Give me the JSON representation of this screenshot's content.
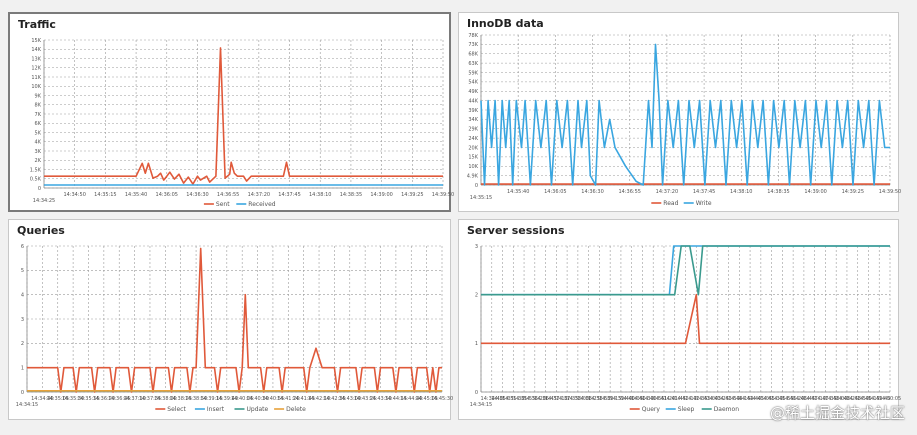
{
  "watermark": "@稀土掘金技术社区",
  "colors": {
    "red": "#e0593a",
    "blue": "#3aa6e0",
    "grid": "#9a9a9a"
  },
  "chart_data": [
    {
      "type": "line",
      "title": "Traffic",
      "y_ticks": [
        "0",
        "0.5K",
        "1.5K",
        "2K",
        "3K",
        "4K",
        "5K",
        "6K",
        "7K",
        "8K",
        "9K",
        "10K",
        "11K",
        "12K",
        "13K",
        "14K",
        "15K"
      ],
      "ylim": [
        0,
        15
      ],
      "x_ticks": [
        "14:34:25",
        "14:34:50",
        "14:35:15",
        "14:35:40",
        "14:36:05",
        "14:36:30",
        "14:36:55",
        "14:37:20",
        "14:37:45",
        "14:38:10",
        "14:38:35",
        "14:39:00",
        "14:39:25",
        "14:39:50"
      ],
      "xlim": [
        0,
        13
      ],
      "series": [
        {
          "name": "Sent",
          "color": "#e0593a",
          "points": [
            [
              0,
              1.2
            ],
            [
              3,
              1.2
            ],
            [
              3.2,
              2.5
            ],
            [
              3.3,
              1.5
            ],
            [
              3.4,
              2.5
            ],
            [
              3.55,
              1
            ],
            [
              3.7,
              1.2
            ],
            [
              3.8,
              1.5
            ],
            [
              3.9,
              0.8
            ],
            [
              4.0,
              1.2
            ],
            [
              4.1,
              1.6
            ],
            [
              4.25,
              0.9
            ],
            [
              4.4,
              1.4
            ],
            [
              4.55,
              0.5
            ],
            [
              4.7,
              1.1
            ],
            [
              4.85,
              0.4
            ],
            [
              5.0,
              1.2
            ],
            [
              5.1,
              0.8
            ],
            [
              5.3,
              1.2
            ],
            [
              5.4,
              0.6
            ],
            [
              5.6,
              1.2
            ],
            [
              5.75,
              14.2
            ],
            [
              5.9,
              1.0
            ],
            [
              6.05,
              1.4
            ],
            [
              6.1,
              2.6
            ],
            [
              6.2,
              1.5
            ],
            [
              6.3,
              1.2
            ],
            [
              6.5,
              1.2
            ],
            [
              6.6,
              0.7
            ],
            [
              6.75,
              1.2
            ],
            [
              7.8,
              1.2
            ],
            [
              7.9,
              2.6
            ],
            [
              8.0,
              1.2
            ],
            [
              13,
              1.2
            ]
          ]
        },
        {
          "name": "Received",
          "color": "#3aa6e0",
          "points": [
            [
              0,
              0.3
            ],
            [
              13,
              0.3
            ]
          ]
        }
      ]
    },
    {
      "type": "line",
      "title": "InnoDB data",
      "y_ticks": [
        "0",
        "4.9K",
        "10K",
        "15K",
        "20K",
        "24K",
        "29K",
        "34K",
        "39K",
        "44K",
        "49K",
        "54K",
        "59K",
        "63K",
        "68K",
        "73K",
        "78K"
      ],
      "ylim": [
        0,
        16
      ],
      "x_ticks": [
        "14:35:15",
        "14:35:40",
        "14:36:05",
        "14:36:30",
        "14:36:55",
        "14:37:20",
        "14:37:45",
        "14:38:10",
        "14:38:35",
        "14:39:00",
        "14:39:25",
        "14:39:50"
      ],
      "xlim": [
        0,
        11.6
      ],
      "series": [
        {
          "name": "Read",
          "color": "#e0593a",
          "points": [
            [
              0,
              0.1
            ],
            [
              11.6,
              0.1
            ]
          ]
        },
        {
          "name": "Write",
          "color": "#3aa6e0",
          "points": [
            [
              0,
              9
            ],
            [
              0.1,
              0
            ],
            [
              0.2,
              9
            ],
            [
              0.3,
              4
            ],
            [
              0.4,
              9
            ],
            [
              0.5,
              0
            ],
            [
              0.6,
              9
            ],
            [
              0.7,
              4
            ],
            [
              0.8,
              9
            ],
            [
              0.9,
              0
            ],
            [
              1.0,
              9
            ],
            [
              1.15,
              4
            ],
            [
              1.25,
              9
            ],
            [
              1.4,
              0
            ],
            [
              1.55,
              9
            ],
            [
              1.7,
              4
            ],
            [
              1.85,
              9
            ],
            [
              2.0,
              0
            ],
            [
              2.15,
              9
            ],
            [
              2.3,
              4
            ],
            [
              2.45,
              9
            ],
            [
              2.6,
              0
            ],
            [
              2.75,
              9
            ],
            [
              2.85,
              4
            ],
            [
              3.0,
              9
            ],
            [
              3.1,
              1
            ],
            [
              3.25,
              0
            ],
            [
              3.35,
              9
            ],
            [
              3.5,
              4
            ],
            [
              3.65,
              7
            ],
            [
              3.8,
              4
            ],
            [
              4.1,
              2
            ],
            [
              4.4,
              0.4
            ],
            [
              4.6,
              0
            ],
            [
              4.75,
              9
            ],
            [
              4.85,
              4
            ],
            [
              4.95,
              15
            ],
            [
              5.05,
              9
            ],
            [
              5.15,
              0
            ],
            [
              5.3,
              9
            ],
            [
              5.45,
              4
            ],
            [
              5.6,
              9
            ],
            [
              5.75,
              0
            ],
            [
              5.9,
              9
            ],
            [
              6.05,
              4
            ],
            [
              6.2,
              9
            ],
            [
              6.35,
              0
            ],
            [
              6.5,
              9
            ],
            [
              6.65,
              4
            ],
            [
              6.8,
              9
            ],
            [
              6.95,
              0
            ],
            [
              7.1,
              9
            ],
            [
              7.25,
              4
            ],
            [
              7.4,
              9
            ],
            [
              7.55,
              0
            ],
            [
              7.7,
              9
            ],
            [
              7.85,
              4
            ],
            [
              8.0,
              9
            ],
            [
              8.15,
              0
            ],
            [
              8.3,
              9
            ],
            [
              8.45,
              4
            ],
            [
              8.6,
              9
            ],
            [
              8.75,
              0
            ],
            [
              8.9,
              9
            ],
            [
              9.05,
              4
            ],
            [
              9.2,
              9
            ],
            [
              9.35,
              0
            ],
            [
              9.5,
              9
            ],
            [
              9.65,
              4
            ],
            [
              9.8,
              9
            ],
            [
              9.95,
              0
            ],
            [
              10.1,
              9
            ],
            [
              10.25,
              4
            ],
            [
              10.4,
              9
            ],
            [
              10.55,
              0
            ],
            [
              10.7,
              9
            ],
            [
              10.85,
              4
            ],
            [
              11.0,
              9
            ],
            [
              11.15,
              0
            ],
            [
              11.3,
              9
            ],
            [
              11.45,
              4
            ],
            [
              11.6,
              4
            ]
          ]
        }
      ]
    },
    {
      "type": "line",
      "title": "Queries",
      "y_ticks": [
        "0",
        "1",
        "2",
        "3",
        "4",
        "5",
        "6"
      ],
      "ylim": [
        0,
        6
      ],
      "x_ticks": [
        "14:34:15",
        "14:34:40",
        "14:35:05",
        "14:35:30",
        "14:35:55",
        "14:36:20",
        "14:36:45",
        "14:37:10",
        "14:37:35",
        "14:38:00",
        "14:38:25",
        "14:38:50",
        "14:39:15",
        "14:39:40",
        "14:40:05",
        "14:40:30",
        "14:40:55",
        "14:41:20",
        "14:41:45",
        "14:42:10",
        "14:42:35",
        "14:43:00",
        "14:43:25",
        "14:43:50",
        "14:44:15",
        "14:44:40",
        "14:45:05",
        "14:45:30"
      ],
      "xlim": [
        0,
        27
      ],
      "series": [
        {
          "name": "Select",
          "color": "#e0593a",
          "points": [
            [
              0,
              1
            ],
            [
              2,
              1
            ],
            [
              2.2,
              0
            ],
            [
              2.4,
              1
            ],
            [
              3,
              1
            ],
            [
              3.2,
              0
            ],
            [
              3.4,
              1
            ],
            [
              4.2,
              1
            ],
            [
              4.4,
              0
            ],
            [
              4.6,
              1
            ],
            [
              5.4,
              1
            ],
            [
              5.6,
              0
            ],
            [
              5.8,
              1
            ],
            [
              6.6,
              1
            ],
            [
              6.8,
              0
            ],
            [
              7,
              1
            ],
            [
              8,
              1
            ],
            [
              8.2,
              0
            ],
            [
              8.4,
              1
            ],
            [
              9.2,
              1
            ],
            [
              9.4,
              0
            ],
            [
              9.6,
              1
            ],
            [
              10.4,
              1
            ],
            [
              10.6,
              0
            ],
            [
              10.8,
              1
            ],
            [
              11,
              1
            ],
            [
              11.3,
              5.9
            ],
            [
              11.6,
              1
            ],
            [
              12.2,
              1
            ],
            [
              12.4,
              0
            ],
            [
              12.6,
              1
            ],
            [
              13.6,
              1
            ],
            [
              13.8,
              0
            ],
            [
              14.0,
              1
            ],
            [
              14.2,
              4
            ],
            [
              14.4,
              1
            ],
            [
              15.2,
              1
            ],
            [
              15.4,
              0
            ],
            [
              15.6,
              1
            ],
            [
              16.4,
              1
            ],
            [
              16.6,
              0
            ],
            [
              16.8,
              1
            ],
            [
              18,
              1
            ],
            [
              18.2,
              0
            ],
            [
              18.4,
              1
            ],
            [
              18.8,
              1.8
            ],
            [
              19.2,
              1
            ],
            [
              20,
              1
            ],
            [
              20.2,
              0
            ],
            [
              20.4,
              1
            ],
            [
              21.4,
              1
            ],
            [
              21.6,
              0
            ],
            [
              21.8,
              1
            ],
            [
              22.6,
              1
            ],
            [
              22.8,
              0
            ],
            [
              23,
              1
            ],
            [
              23.8,
              1
            ],
            [
              24,
              0
            ],
            [
              24.2,
              1
            ],
            [
              25,
              1
            ],
            [
              25.2,
              0
            ],
            [
              25.4,
              1
            ],
            [
              26,
              1
            ],
            [
              26.2,
              0
            ],
            [
              26.4,
              1
            ],
            [
              26.6,
              0
            ],
            [
              26.8,
              1
            ],
            [
              27,
              1
            ]
          ]
        },
        {
          "name": "Insert",
          "color": "#3aa6e0",
          "points": [
            [
              0,
              0.05
            ],
            [
              27,
              0.05
            ]
          ]
        },
        {
          "name": "Update",
          "color": "#3a9a8e",
          "points": [
            [
              0,
              0.05
            ],
            [
              27,
              0.05
            ]
          ]
        },
        {
          "name": "Delete",
          "color": "#e8a23a",
          "points": [
            [
              0,
              0.05
            ],
            [
              27,
              0.05
            ]
          ]
        }
      ]
    },
    {
      "type": "line",
      "title": "Server sessions",
      "y_ticks": [
        "0",
        "1",
        "2",
        "3"
      ],
      "ylim": [
        0,
        3
      ],
      "x_ticks": [
        "14:34:15",
        "14:34:40",
        "14:35:05",
        "14:35:30",
        "14:35:55",
        "14:36:20",
        "14:36:45",
        "14:37:10",
        "14:37:35",
        "14:38:00",
        "14:38:25",
        "14:38:50",
        "14:39:15",
        "14:39:40",
        "14:40:05",
        "14:40:30",
        "14:40:55",
        "14:41:20",
        "14:41:45",
        "14:42:10",
        "14:42:35",
        "14:43:00",
        "14:43:25",
        "14:43:50",
        "14:44:15",
        "14:44:40",
        "14:45:05",
        "14:45:30",
        "14:45:55",
        "14:46:20",
        "14:46:45",
        "14:47:10",
        "14:47:35",
        "14:48:00",
        "14:48:25",
        "14:48:50",
        "14:49:15",
        "14:49:40",
        "14:50:05"
      ],
      "xlim": [
        0,
        38
      ],
      "series": [
        {
          "name": "Query",
          "color": "#e0593a",
          "points": [
            [
              0,
              1
            ],
            [
              19,
              1
            ],
            [
              20,
              2
            ],
            [
              20.3,
              1
            ],
            [
              38,
              1
            ]
          ]
        },
        {
          "name": "Sleep",
          "color": "#3aa6e0",
          "points": [
            [
              0,
              2
            ],
            [
              17.5,
              2
            ],
            [
              17.9,
              3
            ],
            [
              20.3,
              3
            ],
            [
              38,
              3
            ]
          ]
        },
        {
          "name": "Daemon",
          "color": "#3a9a8e",
          "points": [
            [
              0,
              2
            ],
            [
              18,
              2
            ],
            [
              18.6,
              3
            ],
            [
              19.4,
              3
            ],
            [
              20.2,
              2
            ],
            [
              20.6,
              3
            ],
            [
              38,
              3
            ]
          ]
        }
      ]
    }
  ]
}
